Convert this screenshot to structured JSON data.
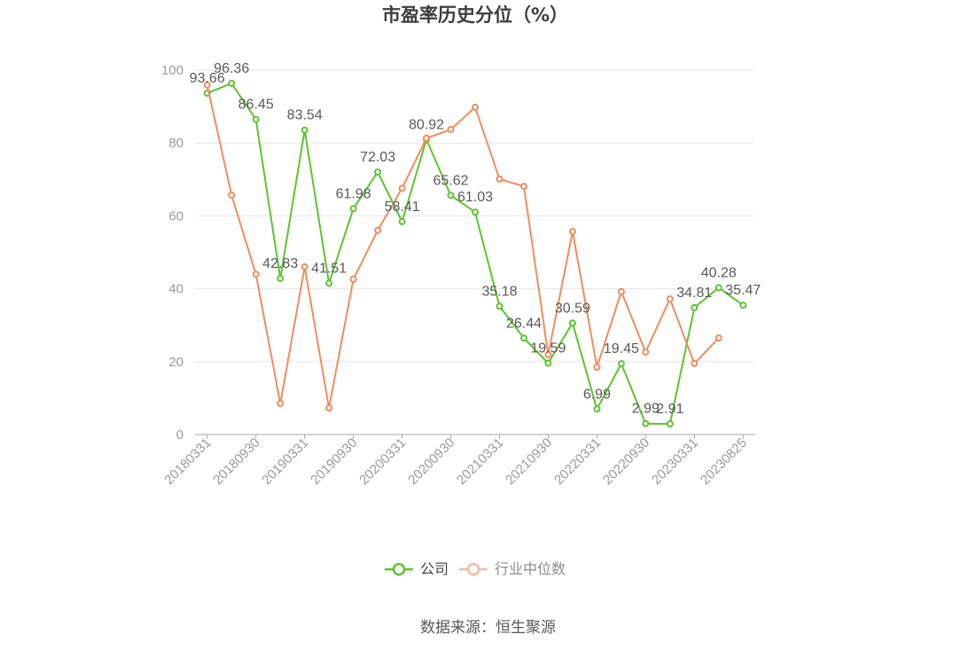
{
  "chart_data": {
    "type": "line",
    "title": "市盈率历史分位（%）",
    "categories": [
      "20180331",
      "",
      "20180930",
      "",
      "20190331",
      "",
      "20190930",
      "",
      "20200331",
      "",
      "20200930",
      "",
      "20210331",
      "",
      "20210930",
      "",
      "20220331",
      "",
      "20220930",
      "",
      "20230331",
      "",
      "20230825"
    ],
    "ylim": [
      0,
      100
    ],
    "yticks": [
      0,
      20,
      40,
      60,
      80,
      100
    ],
    "grid": true,
    "legend": "bottom",
    "series": [
      {
        "name": "公司",
        "color": "#5cc42f",
        "show_labels": true,
        "values": [
          93.66,
          96.36,
          86.45,
          42.83,
          83.54,
          41.51,
          61.98,
          72.03,
          58.41,
          80.92,
          65.62,
          61.03,
          35.18,
          26.44,
          19.59,
          30.59,
          6.99,
          19.45,
          2.99,
          2.91,
          34.81,
          40.28,
          35.47
        ]
      },
      {
        "name": "行业中位数",
        "color": "#f08c5f",
        "show_labels": false,
        "values": [
          95.9,
          65.7,
          44.0,
          8.5,
          46.0,
          7.3,
          42.6,
          56.0,
          67.6,
          81.3,
          83.7,
          89.8,
          70.1,
          68.1,
          21.9,
          55.7,
          18.5,
          39.2,
          22.6,
          37.2,
          19.5,
          26.5,
          null
        ]
      }
    ]
  },
  "footer": {
    "source": "数据来源：恒生聚源"
  }
}
